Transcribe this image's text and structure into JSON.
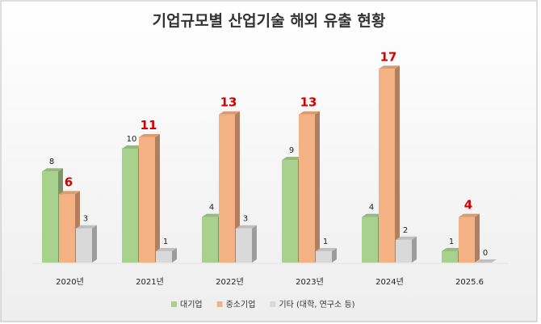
{
  "chart_data": {
    "type": "bar",
    "title": "기업규모별 산업기술 해외 유출 현황",
    "categories": [
      "2020년",
      "2021년",
      "2022년",
      "2023년",
      "2024년",
      "2025.6"
    ],
    "series": [
      {
        "name": "대기업",
        "values": [
          8,
          10,
          4,
          9,
          4,
          1
        ],
        "color": "#a9d18e",
        "highlight": false
      },
      {
        "name": "중소기업",
        "values": [
          6,
          11,
          13,
          13,
          17,
          4
        ],
        "color": "#f4b183",
        "highlight": true,
        "highlight_color": "#d40000"
      },
      {
        "name": "기타 (대학, 연구소 등)",
        "values": [
          3,
          1,
          3,
          1,
          2,
          0
        ],
        "color": "#d9d9d9",
        "highlight": false
      }
    ],
    "ylim": [
      0,
      18
    ],
    "grid": false,
    "legend": "bottom",
    "style": "3d-column"
  }
}
